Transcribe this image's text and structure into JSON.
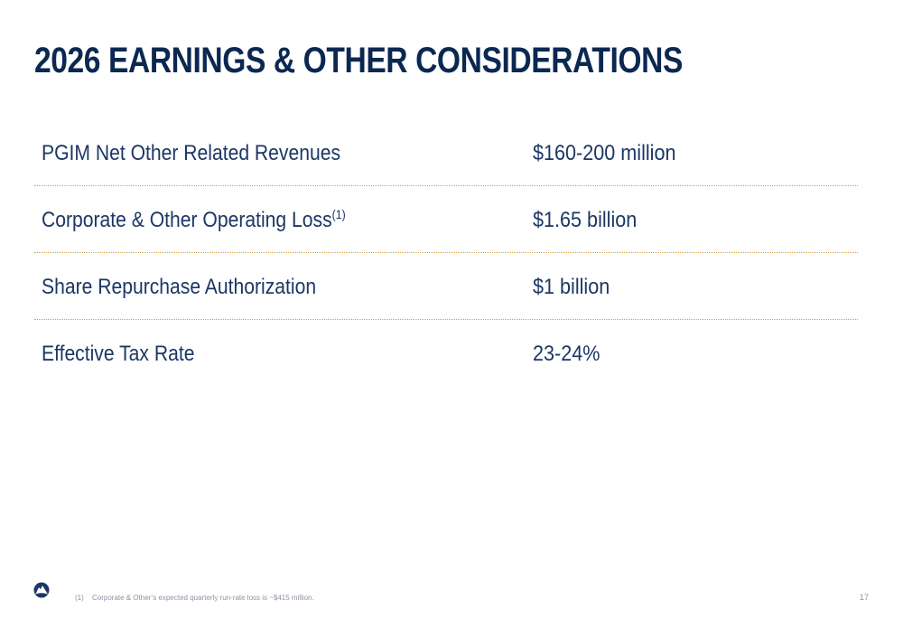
{
  "slide": {
    "title": "2026 EARNINGS & OTHER CONSIDERATIONS"
  },
  "rows": [
    {
      "label": "PGIM Net Other Related Revenues",
      "superscript": "",
      "value": "$160-200 million"
    },
    {
      "label": "Corporate & Other Operating Loss",
      "superscript": "(1)",
      "value": "$1.65 billion"
    },
    {
      "label": "Share Repurchase Authorization",
      "superscript": "",
      "value": "$1 billion"
    },
    {
      "label": "Effective Tax Rate",
      "superscript": "",
      "value": "23-24%"
    }
  ],
  "footer": {
    "logo_icon": "rock-logo-icon",
    "footnote_number": "(1)",
    "footnote_text": "Corporate & Other’s expected quarterly run-rate loss is ~$415 million.",
    "page_number": "17"
  },
  "colors": {
    "title": "#0b2851",
    "body_text": "#1c3764",
    "divider": "#d6a24a",
    "footnote": "#8a93a5"
  }
}
